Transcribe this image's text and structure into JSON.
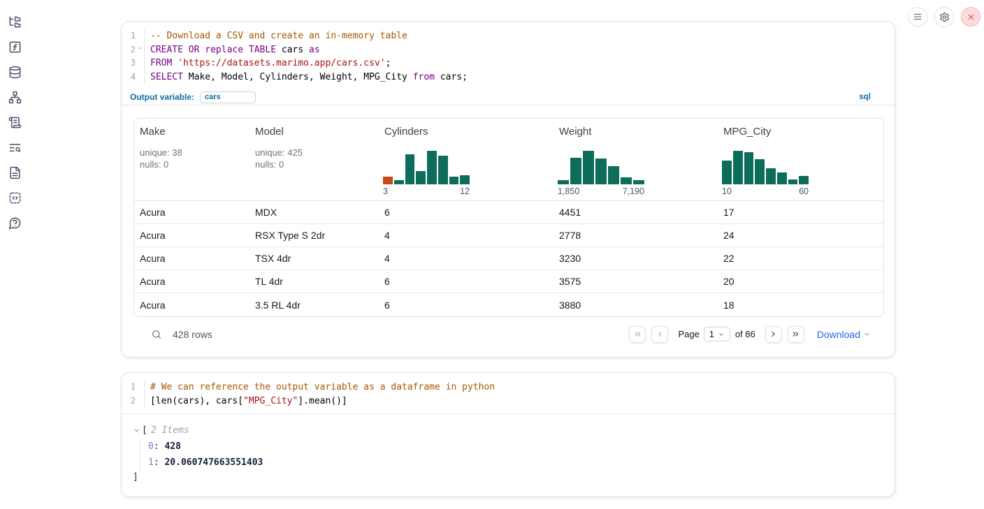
{
  "sidebar": {
    "icons": [
      "file-tree",
      "function",
      "database",
      "graph",
      "scroll",
      "search-list",
      "document",
      "code-snippet",
      "help"
    ]
  },
  "topbar": {
    "buttons": [
      "menu",
      "settings",
      "close"
    ]
  },
  "sql_cell": {
    "language_badge": "sql",
    "output_variable_label": "Output variable:",
    "output_variable_value": "cars",
    "lines": [
      {
        "n": "1",
        "fold": false,
        "tokens": [
          {
            "c": "com",
            "t": "-- Download a CSV and create an in-memory table"
          }
        ]
      },
      {
        "n": "2",
        "fold": true,
        "tokens": [
          {
            "c": "kw",
            "t": "CREATE"
          },
          {
            "t": " "
          },
          {
            "c": "kw",
            "t": "OR"
          },
          {
            "t": " "
          },
          {
            "c": "kw",
            "t": "replace"
          },
          {
            "t": " "
          },
          {
            "c": "kw",
            "t": "TABLE"
          },
          {
            "t": " cars "
          },
          {
            "c": "kw",
            "t": "as"
          }
        ]
      },
      {
        "n": "3",
        "fold": false,
        "tokens": [
          {
            "c": "kw",
            "t": "FROM"
          },
          {
            "t": " "
          },
          {
            "c": "str",
            "t": "'https://datasets.marimo.app/cars.csv'"
          },
          {
            "t": ";"
          }
        ]
      },
      {
        "n": "4",
        "fold": false,
        "tokens": [
          {
            "c": "kw",
            "t": "SELECT"
          },
          {
            "t": " Make, Model, Cylinders, Weight, MPG_City "
          },
          {
            "c": "kw",
            "t": "from"
          },
          {
            "t": " cars;"
          }
        ]
      }
    ]
  },
  "table": {
    "columns": [
      {
        "name": "Make",
        "stats": [
          "unique: 38",
          "nulls: 0"
        ]
      },
      {
        "name": "Model",
        "stats": [
          "unique: 425",
          "nulls: 0"
        ]
      },
      {
        "name": "Cylinders",
        "histogram": {
          "bars": [
            22,
            13,
            90,
            40,
            100,
            85,
            22,
            28
          ],
          "flag_first": true,
          "min": "3",
          "max": "12"
        }
      },
      {
        "name": "Weight",
        "histogram": {
          "bars": [
            13,
            80,
            100,
            78,
            55,
            20,
            13
          ],
          "flag_first": false,
          "min": "1,850",
          "max": "7,190"
        }
      },
      {
        "name": "MPG_City",
        "histogram": {
          "bars": [
            70,
            100,
            95,
            75,
            47,
            35,
            15,
            25
          ],
          "flag_first": false,
          "min": "10",
          "max": "60"
        }
      }
    ],
    "rows": [
      [
        "Acura",
        "MDX",
        "6",
        "4451",
        "17"
      ],
      [
        "Acura",
        "RSX Type S 2dr",
        "4",
        "2778",
        "24"
      ],
      [
        "Acura",
        "TSX 4dr",
        "4",
        "3230",
        "22"
      ],
      [
        "Acura",
        "TL 4dr",
        "6",
        "3575",
        "20"
      ],
      [
        "Acura",
        "3.5 RL 4dr",
        "6",
        "3880",
        "18"
      ]
    ],
    "footer": {
      "row_count": "428 rows",
      "page_label": "Page",
      "page_value": "1",
      "of_label": "of 86",
      "download_label": "Download"
    }
  },
  "python_cell": {
    "lines": [
      {
        "n": "1",
        "fold": false,
        "tokens": [
          {
            "c": "com",
            "t": "# We can reference the output variable as a dataframe in python"
          }
        ]
      },
      {
        "n": "2",
        "fold": false,
        "tokens": [
          {
            "t": "[len(cars), cars["
          },
          {
            "c": "str",
            "t": "\"MPG_City\""
          },
          {
            "t": "].mean()]"
          }
        ]
      }
    ]
  },
  "output_tree": {
    "open_bracket": "[",
    "items_label": "2 Items",
    "entries": [
      {
        "key": "0",
        "sep": ": ",
        "value": "428"
      },
      {
        "key": "1",
        "sep": ": ",
        "value": "20.060747663551403"
      }
    ],
    "close_bracket": "]"
  },
  "colors": {
    "histogram_green": "#0e6c5a",
    "histogram_orange": "#c44a1d",
    "accent_blue": "#136c9e",
    "link_blue": "#2563eb",
    "close_red": "#e5484d"
  }
}
